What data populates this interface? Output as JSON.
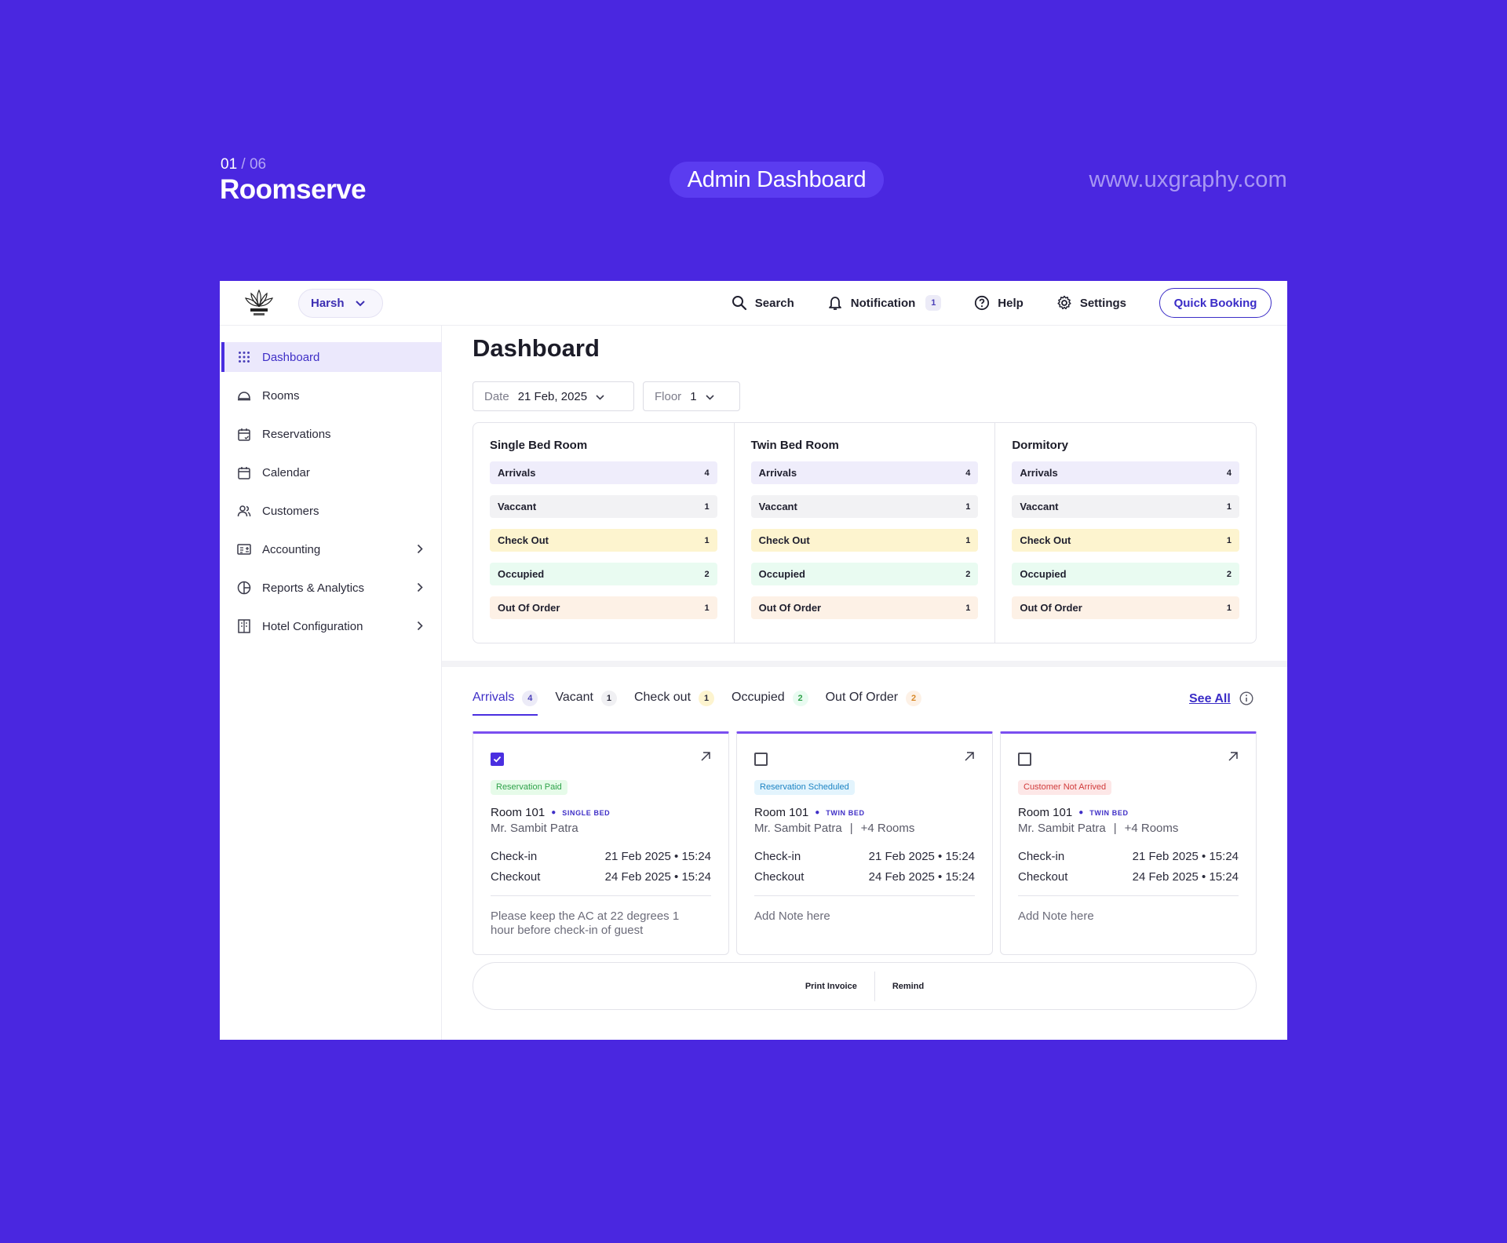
{
  "presentation": {
    "counter_current": "01",
    "counter_total": "/ 06",
    "project_name": "Roomserve",
    "screen_label": "Admin Dashboard",
    "website": "www.uxgraphy.com"
  },
  "topbar": {
    "user_name": "Harsh",
    "search_label": "Search",
    "notification_label": "Notification",
    "notification_count": "1",
    "help_label": "Help",
    "settings_label": "Settings",
    "quick_booking_label": "Quick Booking"
  },
  "sidebar": {
    "items": [
      {
        "label": "Dashboard",
        "icon": "grid-icon"
      },
      {
        "label": "Rooms",
        "icon": "cloche-icon"
      },
      {
        "label": "Reservations",
        "icon": "calendar-check-icon"
      },
      {
        "label": "Calendar",
        "icon": "calendar-icon"
      },
      {
        "label": "Customers",
        "icon": "users-icon"
      },
      {
        "label": "Accounting",
        "icon": "ledger-icon"
      },
      {
        "label": "Reports & Analytics",
        "icon": "pie-chart-icon"
      },
      {
        "label": "Hotel Configuration",
        "icon": "building-icon"
      }
    ]
  },
  "main": {
    "title": "Dashboard",
    "date_label": "Date",
    "date_value": "21 Feb, 2025",
    "floor_label": "Floor",
    "floor_value": "1"
  },
  "room_types": [
    {
      "title": "Single Bed Room",
      "stats": [
        {
          "label": "Arrivals",
          "count": "4"
        },
        {
          "label": "Vaccant",
          "count": "1"
        },
        {
          "label": "Check Out",
          "count": "1"
        },
        {
          "label": "Occupied",
          "count": "2"
        },
        {
          "label": "Out Of Order",
          "count": "1"
        }
      ]
    },
    {
      "title": "Twin Bed Room",
      "stats": [
        {
          "label": "Arrivals",
          "count": "4"
        },
        {
          "label": "Vaccant",
          "count": "1"
        },
        {
          "label": "Check Out",
          "count": "1"
        },
        {
          "label": "Occupied",
          "count": "2"
        },
        {
          "label": "Out Of Order",
          "count": "1"
        }
      ]
    },
    {
      "title": "Dormitory",
      "stats": [
        {
          "label": "Arrivals",
          "count": "4"
        },
        {
          "label": "Vaccant",
          "count": "1"
        },
        {
          "label": "Check Out",
          "count": "1"
        },
        {
          "label": "Occupied",
          "count": "2"
        },
        {
          "label": "Out Of Order",
          "count": "1"
        }
      ]
    }
  ],
  "stat_colors": {
    "arrivals": "#efedfb",
    "vacant": "#f2f2f4",
    "checkout": "#fdf4cf",
    "occupied": "#e9fbf1",
    "out_of_order": "#fdf1e6"
  },
  "tabs": [
    {
      "label": "Arrivals",
      "count": "4"
    },
    {
      "label": "Vacant",
      "count": "1"
    },
    {
      "label": "Check out",
      "count": "1"
    },
    {
      "label": "Occupied",
      "count": "2"
    },
    {
      "label": "Out Of Order",
      "count": "2"
    }
  ],
  "see_all_label": "See All",
  "cards": [
    {
      "checked": true,
      "status": "Reservation Paid",
      "room": "Room 101",
      "bed_type": "SINGLE BED",
      "guest": "Mr. Sambit Patra",
      "extra_rooms": "",
      "checkin_label": "Check-in",
      "checkin_value": "21 Feb 2025 • 15:24",
      "checkout_label": "Checkout",
      "checkout_value": "24 Feb 2025 • 15:24",
      "note": "Please keep the AC at 22 degrees 1 hour before check-in of guest"
    },
    {
      "checked": false,
      "status": "Reservation Scheduled",
      "room": "Room 101",
      "bed_type": "TWIN BED",
      "guest": "Mr. Sambit Patra",
      "extra_rooms": "+4 Rooms",
      "checkin_label": "Check-in",
      "checkin_value": "21 Feb 2025 • 15:24",
      "checkout_label": "Checkout",
      "checkout_value": "24 Feb 2025 • 15:24",
      "note": "Add Note here"
    },
    {
      "checked": false,
      "status": "Customer Not Arrived",
      "room": "Room 101",
      "bed_type": "TWIN BED",
      "guest": "Mr. Sambit Patra",
      "extra_rooms": "+4 Rooms",
      "checkin_label": "Check-in",
      "checkin_value": "21 Feb 2025 • 15:24",
      "checkout_label": "Checkout",
      "checkout_value": "24 Feb 2025 • 15:24",
      "note": "Add Note here"
    }
  ],
  "actions": {
    "print_invoice": "Print Invoice",
    "remind": "Remind"
  },
  "colors": {
    "brand_background": "#4a27e0",
    "accent": "#4a2fe0",
    "status_paid_bg": "#e6fbe9",
    "status_paid_fg": "#2fa24a",
    "status_scheduled_bg": "#e3f4fd",
    "status_scheduled_fg": "#1d84c4",
    "status_not_arrived_bg": "#fde7e7",
    "status_not_arrived_fg": "#d13b3b"
  }
}
